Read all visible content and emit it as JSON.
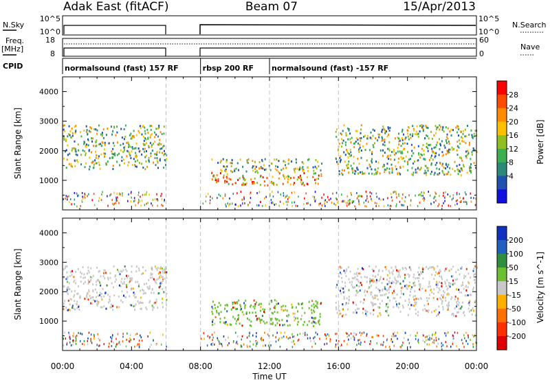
{
  "header": {
    "station": "Adak East (fitACF)",
    "beam": "Beam 07",
    "date": "15/Apr/2013"
  },
  "aux_panels": {
    "nsky_label": "N.Sky",
    "nsky_ticks": [
      "10^5",
      "10^0"
    ],
    "nsearch_label": "N.Search",
    "nsearch_ticks": [
      "10^5",
      "10^0"
    ],
    "freq_label_1": "Freq.",
    "freq_label_2": "[MHz]",
    "freq_ticks": [
      "18",
      "8"
    ],
    "nave_label": "Nave",
    "nave_ticks": [
      "60",
      "0"
    ],
    "cpid_label": "CPID",
    "cpid_modes": [
      {
        "label": "normalsound (fast) 157 RF",
        "start": 0,
        "end": 8
      },
      {
        "label": "rbsp 200 RF",
        "start": 8,
        "end": 12
      },
      {
        "label": "normalsound (fast) -157 RF",
        "start": 12,
        "end": 24
      }
    ]
  },
  "chart_data": [
    {
      "type": "heatmap",
      "name_on_colorbar": "Power [dB]",
      "ylabel": "Slant Range [km]",
      "ylim": [
        0,
        4500
      ],
      "yticks": [
        "1000",
        "2000",
        "3000",
        "4000"
      ],
      "xlim_hours": [
        0,
        24
      ],
      "data_gap_hours": [
        6,
        8
      ],
      "colorbar_ticks": [
        "28",
        "24",
        "20",
        "16",
        "12",
        "8",
        "4"
      ],
      "colorbar_colors": [
        "#ff0000",
        "#ff4a00",
        "#ff8c00",
        "#ffc000",
        "#90c020",
        "#3cb050",
        "#2a8a7a",
        "#2050b0",
        "#1010e0"
      ],
      "features": [
        {
          "hours": [
            0.0,
            6.0
          ],
          "range_km": [
            1400,
            2900
          ],
          "power_db": 16
        },
        {
          "hours": [
            8.6,
            15.0
          ],
          "range_km": [
            850,
            1750
          ],
          "power_db": 28
        },
        {
          "hours": [
            15.8,
            24.0
          ],
          "range_km": [
            1200,
            2900
          ],
          "power_db": 18
        }
      ]
    },
    {
      "type": "heatmap",
      "name_on_colorbar": "Velocity [m s^-1]",
      "ylabel": "Slant Range [km]",
      "ylim": [
        0,
        4500
      ],
      "yticks": [
        "1000",
        "2000",
        "3000",
        "4000"
      ],
      "xlim_hours": [
        0,
        24
      ],
      "xticks": [
        "00:00",
        "04:00",
        "08:00",
        "12:00",
        "16:00",
        "20:00",
        "00:00"
      ],
      "xlabel": "Time UT",
      "colorbar_ticks": [
        "200",
        "100",
        "50",
        "15",
        "-15",
        "-50",
        "-100",
        "-200"
      ],
      "colorbar_colors": [
        "#1030c0",
        "#2060c0",
        "#2f8f3f",
        "#6cc030",
        "#c8c8c8",
        "#ffb000",
        "#ff7000",
        "#ff3000",
        "#e00000"
      ],
      "features": [
        {
          "hours": [
            0.0,
            6.0
          ],
          "range_km": [
            1400,
            2900
          ],
          "velocity_ms": 0
        },
        {
          "hours": [
            8.6,
            15.0
          ],
          "range_km": [
            850,
            1750
          ],
          "velocity_ms": 40
        },
        {
          "hours": [
            15.8,
            24.0
          ],
          "range_km": [
            1200,
            2900
          ],
          "velocity_ms": 0
        }
      ]
    }
  ],
  "colors": {
    "gap_line": "#c0c0c0",
    "frame": "#000000"
  }
}
